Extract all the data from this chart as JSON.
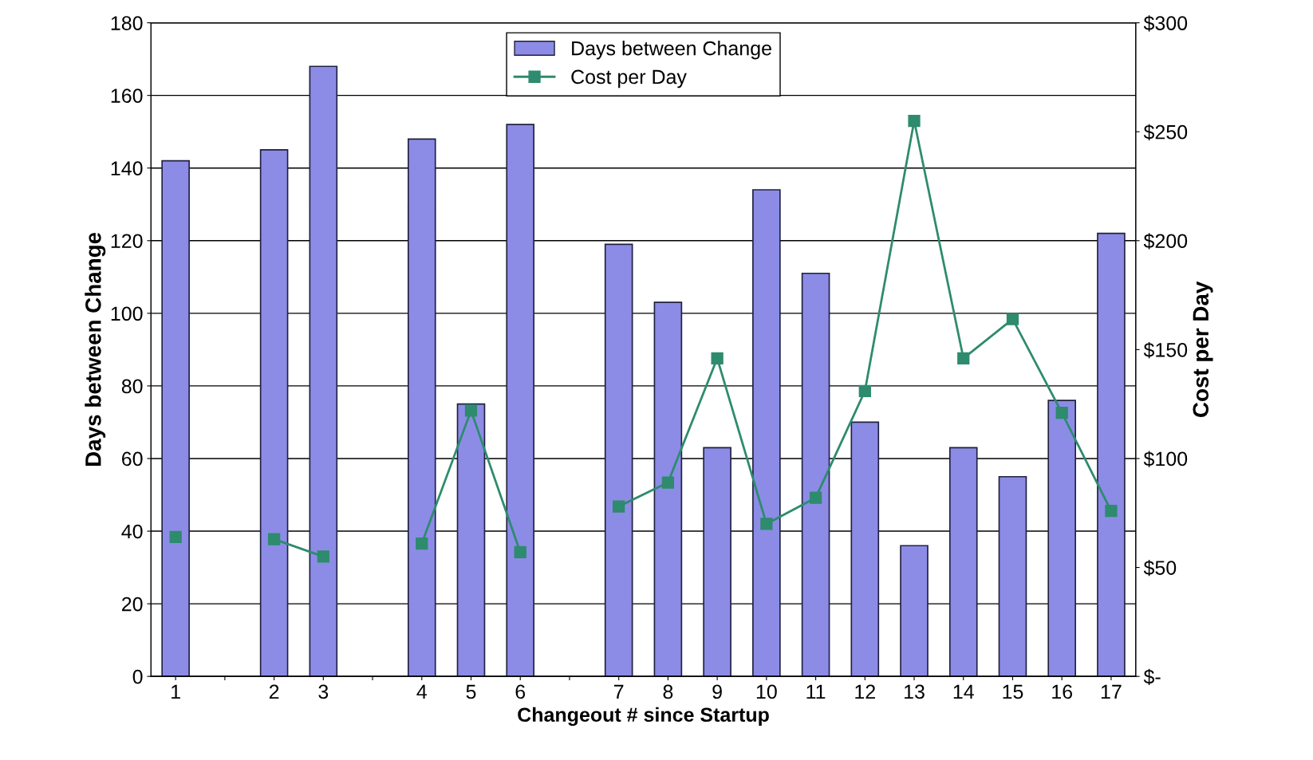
{
  "chart_data": {
    "type": "bar",
    "xlabel": "Changeout # since Startup",
    "ylabel": "Days between Change",
    "y2label": "Cost per Day",
    "categories": [
      "1",
      null,
      "2",
      "3",
      null,
      "4",
      "5",
      "6",
      null,
      "7",
      "8",
      "9",
      "10",
      "11",
      "12",
      "13",
      "14",
      "15",
      "16",
      "17"
    ],
    "series": [
      {
        "name": "Days between Change",
        "color": "#8c8ce6",
        "values": [
          142,
          null,
          145,
          168,
          null,
          148,
          75,
          152,
          null,
          119,
          103,
          63,
          134,
          111,
          70,
          36,
          63,
          55,
          76,
          122
        ]
      },
      {
        "name": "Cost per Day",
        "type": "line",
        "axis": "y2",
        "color": "#2e8b6e",
        "marker": "square",
        "values": [
          64,
          null,
          63,
          55,
          null,
          61,
          122,
          57,
          null,
          78,
          89,
          146,
          70,
          82,
          131,
          255,
          146,
          164,
          121,
          76
        ]
      }
    ],
    "ylim": [
      0,
      180
    ],
    "yticks": [
      0,
      20,
      40,
      60,
      80,
      100,
      120,
      140,
      160,
      180
    ],
    "y2lim": [
      0,
      300
    ],
    "y2ticks": [
      {
        "value": 0,
        "label": "$-"
      },
      {
        "value": 50,
        "label": "$50"
      },
      {
        "value": 100,
        "label": "$100"
      },
      {
        "value": 150,
        "label": "$150"
      },
      {
        "value": 200,
        "label": "$200"
      },
      {
        "value": 250,
        "label": "$250"
      },
      {
        "value": 300,
        "label": "$300"
      }
    ],
    "grid": "y",
    "legend": "top"
  }
}
